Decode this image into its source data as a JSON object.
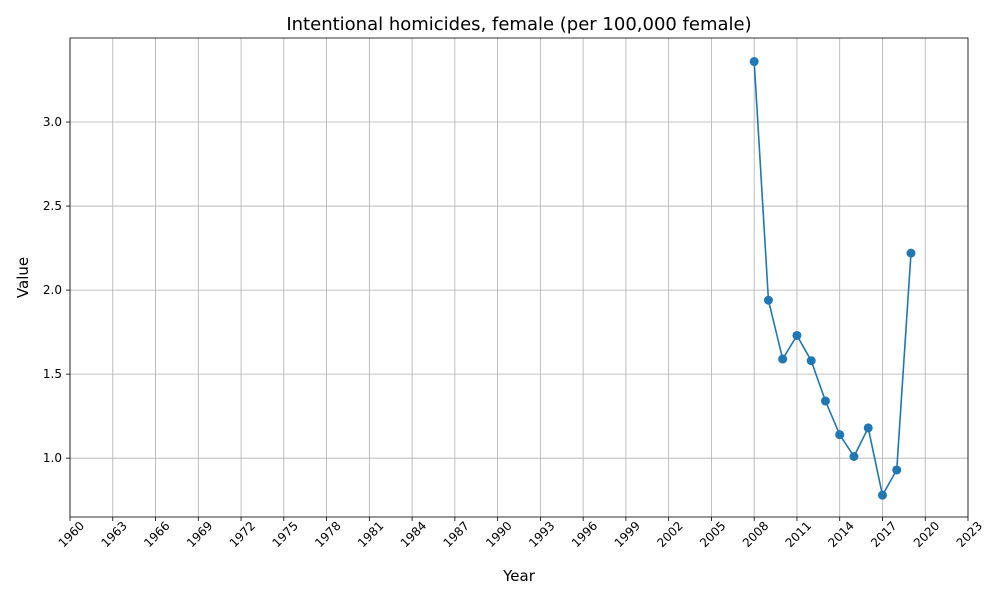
{
  "chart_data": {
    "type": "line",
    "title": "Intentional homicides, female (per 100,000 female)",
    "xlabel": "Year",
    "ylabel": "Value",
    "xlim": [
      1960,
      2023
    ],
    "ylim": [
      0.65,
      3.5
    ],
    "x_ticks": [
      1960,
      1963,
      1966,
      1969,
      1972,
      1975,
      1978,
      1981,
      1984,
      1987,
      1990,
      1993,
      1996,
      1999,
      2002,
      2005,
      2008,
      2011,
      2014,
      2017,
      2020,
      2023
    ],
    "y_ticks": [
      1.0,
      1.5,
      2.0,
      2.5,
      3.0
    ],
    "y_tick_labels": [
      "1.0",
      "1.5",
      "2.0",
      "2.5",
      "3.0"
    ],
    "grid": true,
    "series": [
      {
        "color": "#1f77b4",
        "marker": "circle",
        "x": [
          2008,
          2009,
          2010,
          2011,
          2012,
          2013,
          2014,
          2015,
          2016,
          2017,
          2018,
          2019
        ],
        "y": [
          3.36,
          1.94,
          1.59,
          1.73,
          1.58,
          1.34,
          1.14,
          1.01,
          1.18,
          0.78,
          0.93,
          2.22
        ]
      }
    ]
  }
}
